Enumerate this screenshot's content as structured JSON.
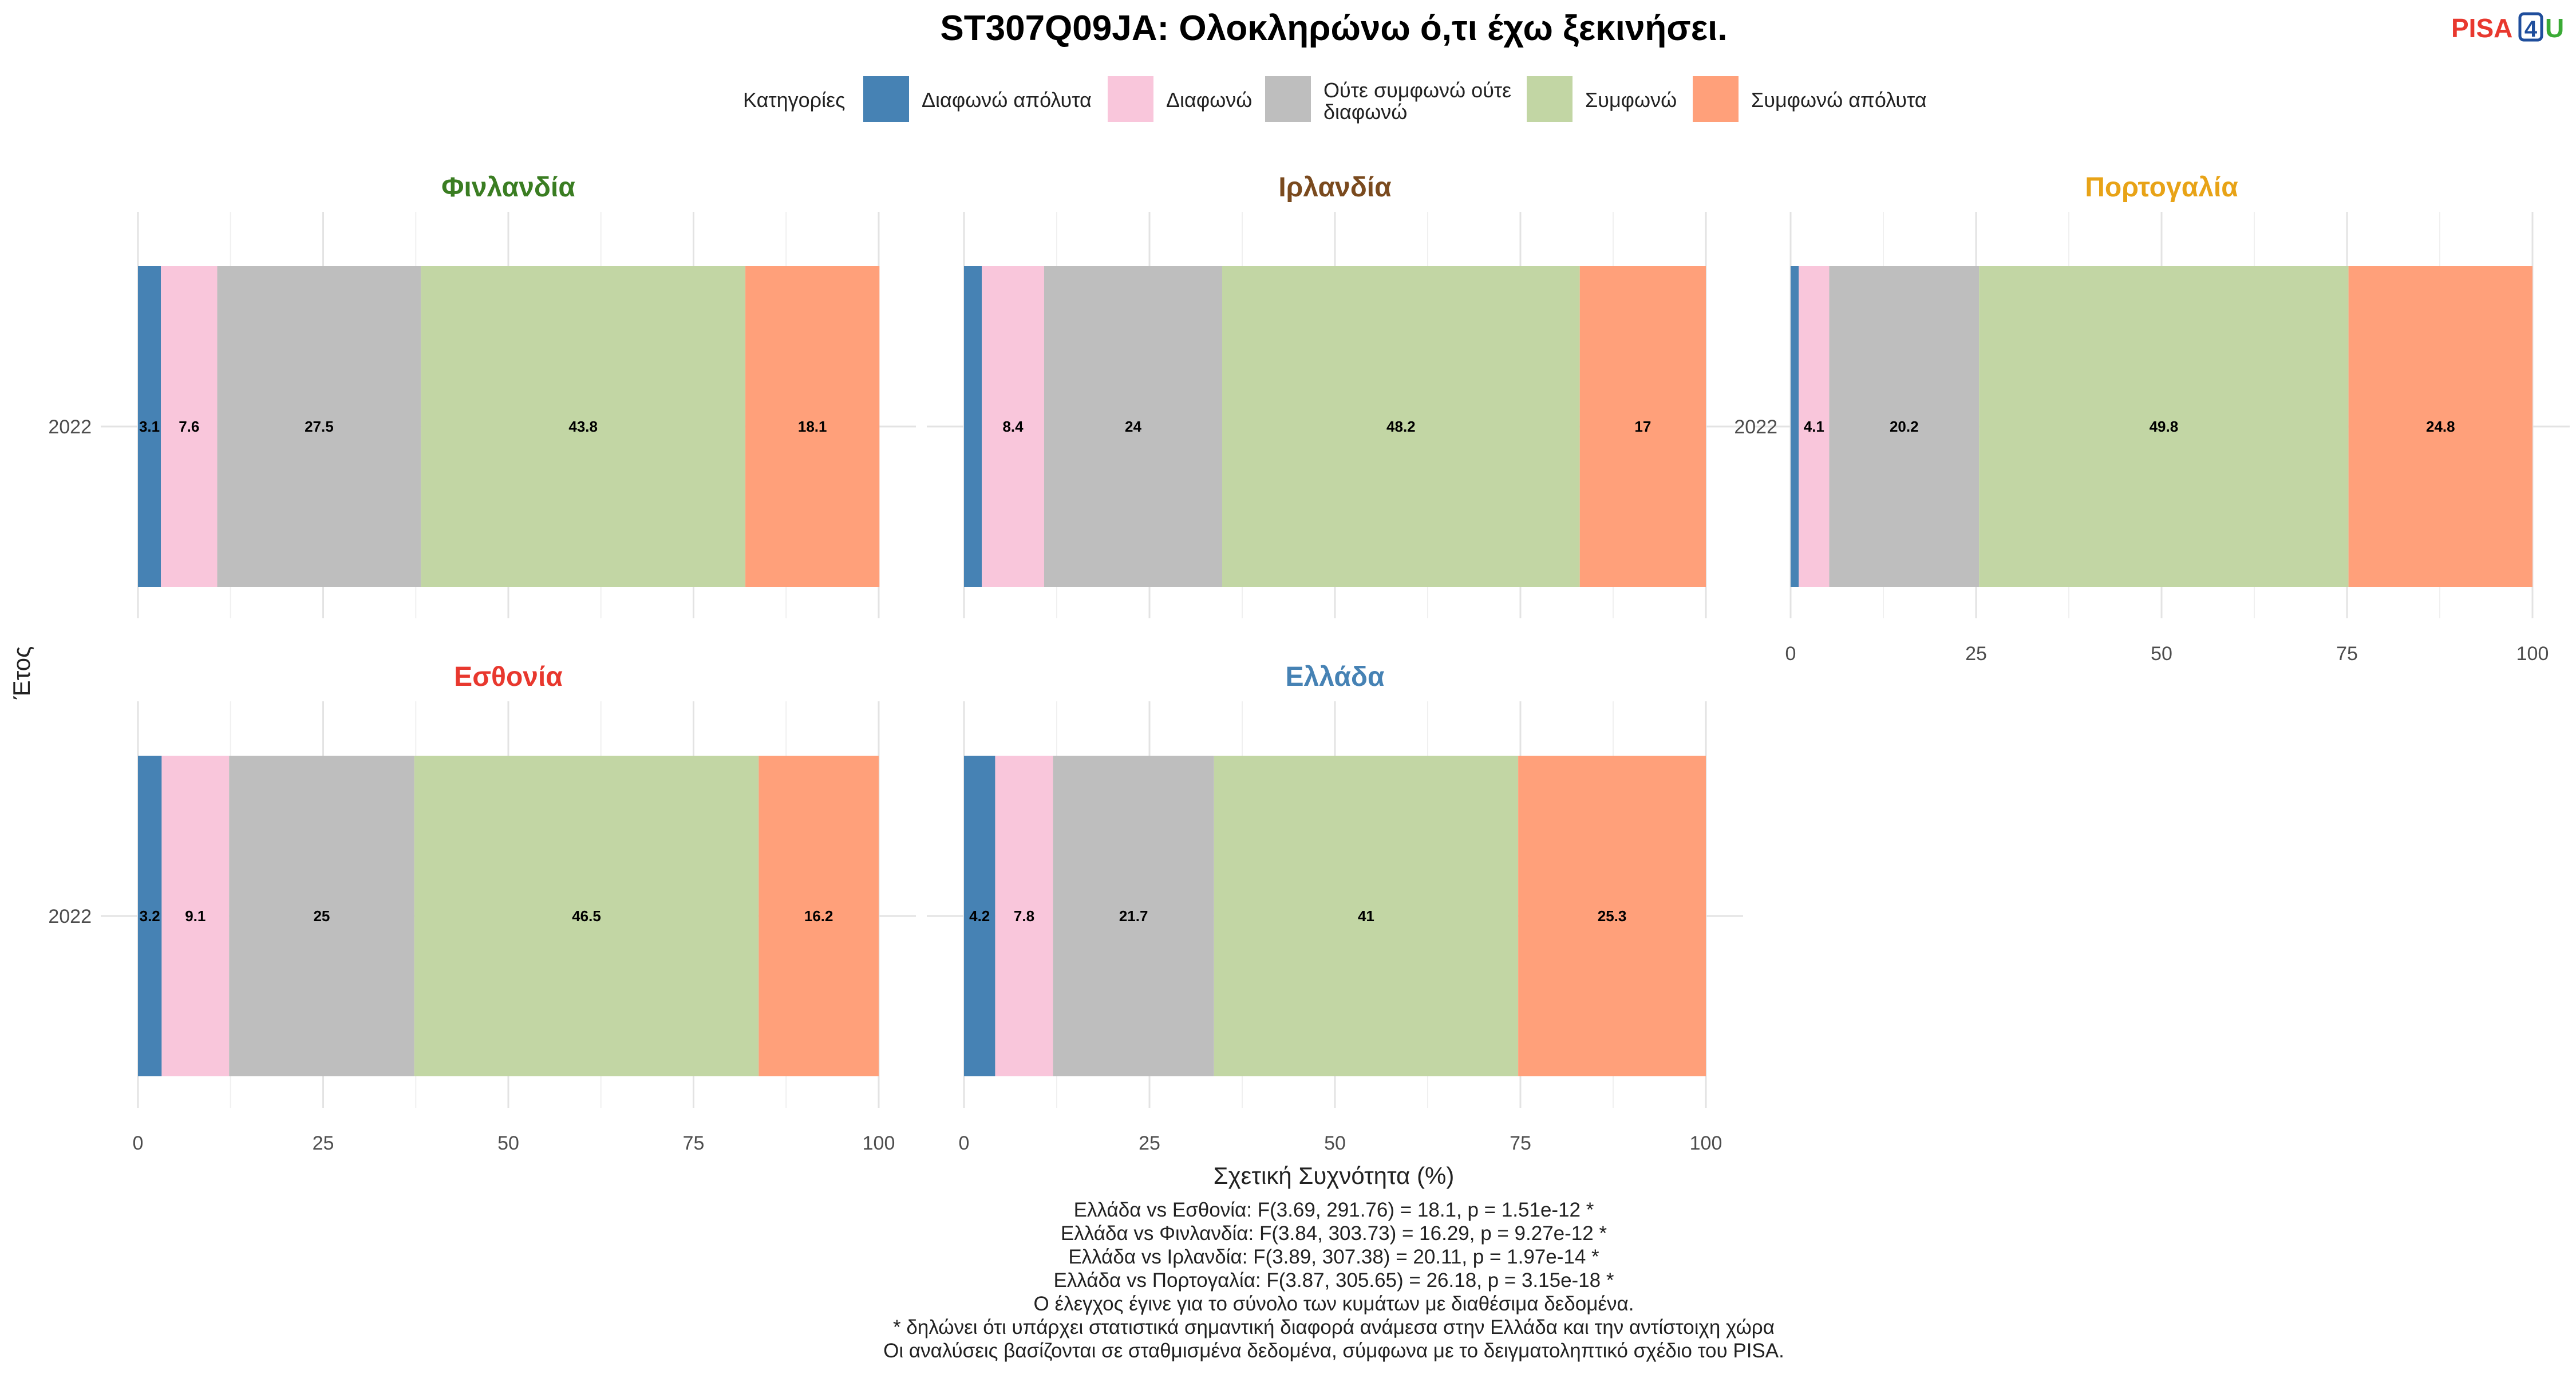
{
  "chart_data": {
    "type": "bar",
    "orientation": "horizontal",
    "stacked": true,
    "title": "ST307Q09JA: Ολοκληρώνω ό,τι έχω ξεκινήσει.",
    "xlabel": "Σχετική Συχνότητα (%)",
    "ylabel": "Έτος",
    "xlim": [
      0,
      100
    ],
    "xticks": [
      0,
      25,
      50,
      75,
      100
    ],
    "legend": {
      "title": "Κατηγορίες",
      "position": "top",
      "items": [
        {
          "name": "Διαφωνώ απόλυτα",
          "color": "#4682B4"
        },
        {
          "name": "Διαφωνώ",
          "color": "#F9C6DB"
        },
        {
          "name": "Ούτε συμφωνώ ούτε διαφωνώ",
          "lines": [
            "Ούτε συμφωνώ ούτε",
            "διαφωνώ"
          ],
          "color": "#BEBEBE"
        },
        {
          "name": "Συμφωνώ",
          "color": "#C2D6A4"
        },
        {
          "name": "Συμφωνώ απόλυτα",
          "color": "#FFA07A"
        }
      ]
    },
    "facets": [
      {
        "country": "Φινλανδία",
        "color": "#3A7D22",
        "year": "2022",
        "values": [
          3.1,
          7.6,
          27.5,
          43.8,
          18.1
        ],
        "labels": [
          "3.1",
          "7.6",
          "27.5",
          "43.8",
          "18.1"
        ]
      },
      {
        "country": "Ιρλανδία",
        "color": "#7A4A1E",
        "year": "2022",
        "values": [
          2.4,
          8.4,
          24,
          48.2,
          17
        ],
        "labels": [
          "",
          "8.4",
          "24",
          "48.2",
          "17"
        ]
      },
      {
        "country": "Πορτογαλία",
        "color": "#E8A317",
        "year": "2022",
        "values": [
          1.1,
          4.1,
          20.2,
          49.8,
          24.8
        ],
        "labels": [
          "",
          "4.1",
          "20.2",
          "49.8",
          "24.8"
        ]
      },
      {
        "country": "Εσθονία",
        "color": "#E8382E",
        "year": "2022",
        "values": [
          3.2,
          9.1,
          25,
          46.5,
          16.2
        ],
        "labels": [
          "3.2",
          "9.1",
          "25",
          "46.5",
          "16.2"
        ]
      },
      {
        "country": "Ελλάδα",
        "color": "#4682B4",
        "year": "2022",
        "values": [
          4.2,
          7.8,
          21.7,
          41,
          25.3
        ],
        "labels": [
          "4.2",
          "7.8",
          "21.7",
          "41",
          "25.3"
        ]
      }
    ],
    "caption": [
      "Ελλάδα vs Εσθονία: F(3.69, 291.76) = 18.1, p = 1.51e-12 *",
      "Ελλάδα vs Φινλανδία: F(3.84, 303.73) = 16.29, p = 9.27e-12 *",
      "Ελλάδα vs Ιρλανδία: F(3.89, 307.38) = 20.11, p = 1.97e-14 *",
      "Ελλάδα vs Πορτογαλία: F(3.87, 305.65) = 26.18, p = 3.15e-18 *",
      "Ο έλεγχος έγινε για το σύνολο των κυμάτων με διαθέσιμα δεδομένα.",
      "* δηλώνει ότι υπάρχει στατιστικά σημαντική διαφορά ανάμεσα στην Ελλάδα και την αντίστοιχη χώρα",
      "Οι αναλύσεις βασίζονται σε σταθμισμένα δεδομένα, σύμφωνα με το δειγματοληπτικό σχέδιο του PISA."
    ]
  },
  "logo": {
    "part1": "PISA",
    "part2": "4",
    "part3": "U",
    "color1": "#E8382E",
    "color2": "#1F4E9C",
    "color3": "#3AAA35"
  }
}
